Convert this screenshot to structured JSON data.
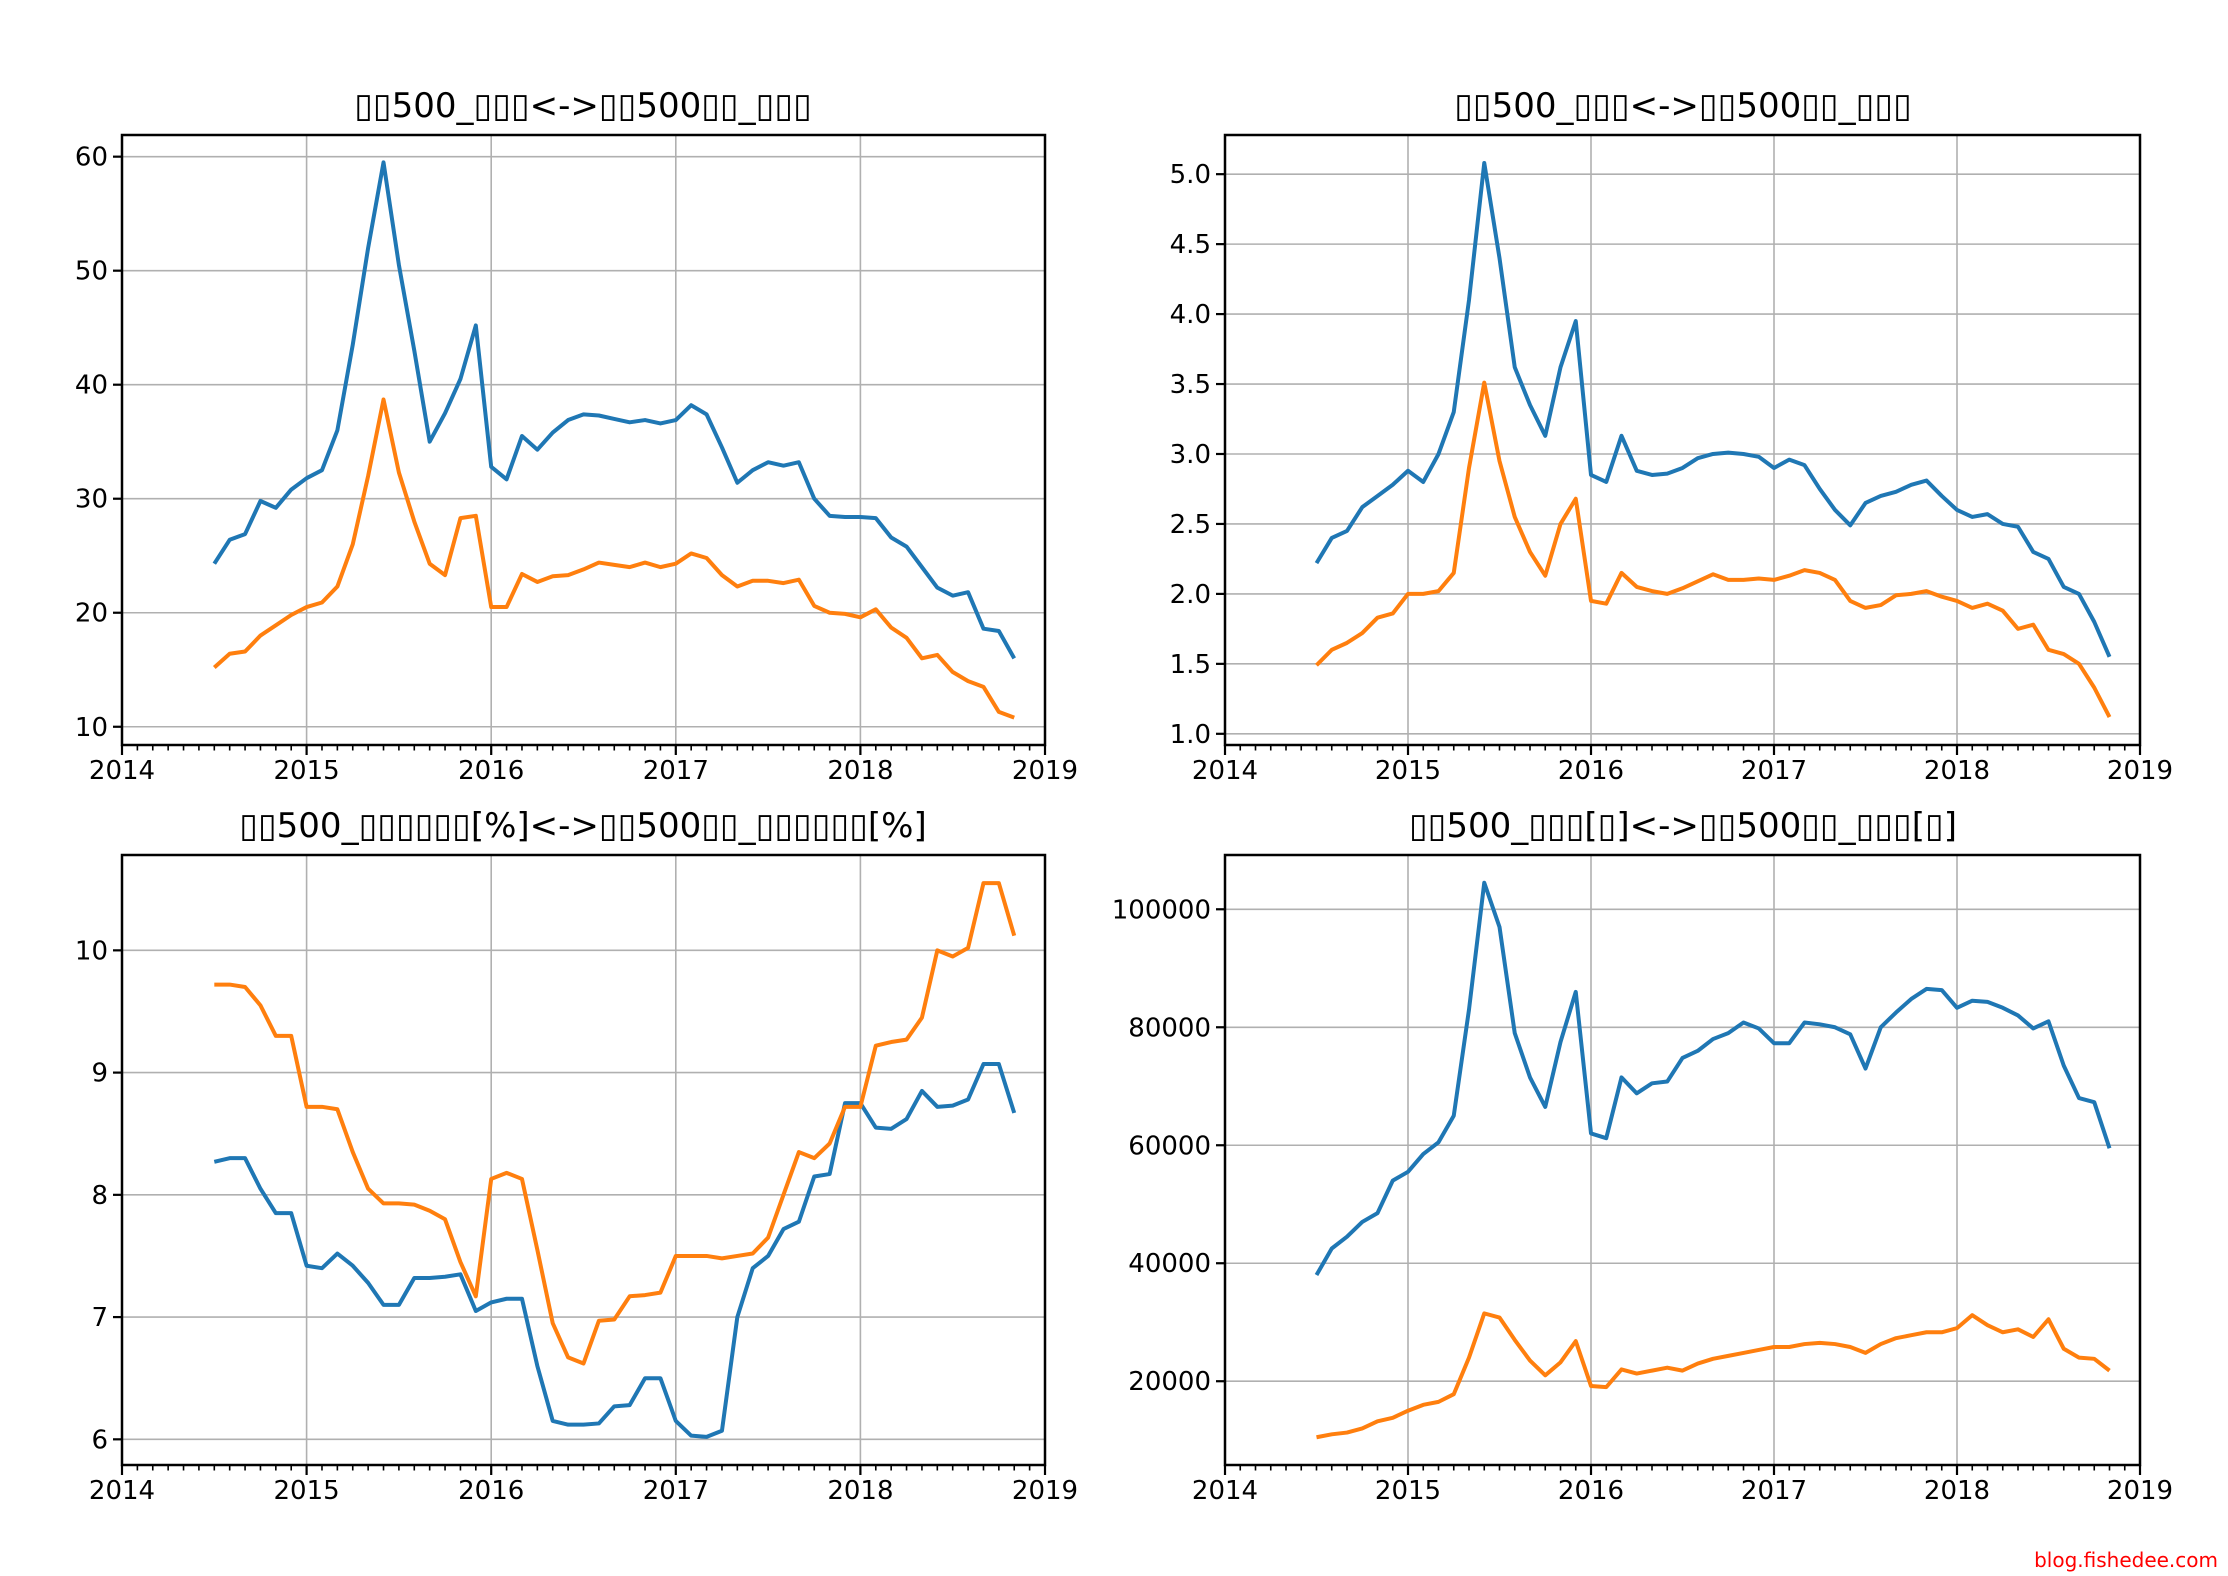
{
  "figure": {
    "background": "#ffffff"
  },
  "palette": {
    "blue": "#1f77b4",
    "orange": "#ff7f0e",
    "grid": "#b0b0b0",
    "spine": "#000000",
    "tick_label": "#000000"
  },
  "watermark": {
    "text": "blog.fishedee.com",
    "color": "#ff0000"
  },
  "months": [
    "2014-07",
    "2014-08",
    "2014-09",
    "2014-10",
    "2014-11",
    "2014-12",
    "2015-01",
    "2015-02",
    "2015-03",
    "2015-04",
    "2015-05",
    "2015-06",
    "2015-07",
    "2015-08",
    "2015-09",
    "2015-10",
    "2015-11",
    "2015-12",
    "2016-01",
    "2016-02",
    "2016-03",
    "2016-04",
    "2016-05",
    "2016-06",
    "2016-07",
    "2016-08",
    "2016-09",
    "2016-10",
    "2016-11",
    "2016-12",
    "2017-01",
    "2017-02",
    "2017-03",
    "2017-04",
    "2017-05",
    "2017-06",
    "2017-07",
    "2017-08",
    "2017-09",
    "2017-10",
    "2017-11",
    "2017-12",
    "2018-01",
    "2018-02",
    "2018-03",
    "2018-04",
    "2018-05",
    "2018-06",
    "2018-07",
    "2018-08",
    "2018-09",
    "2018-10",
    "2018-11"
  ],
  "xlim": [
    2014,
    2019
  ],
  "xtick_labels": [
    "2014",
    "2015",
    "2016",
    "2017",
    "2018",
    "2019"
  ],
  "chart_data": [
    {
      "type": "line",
      "position": "top-left",
      "title": "▯▯500_▯▯▯<->▯▯500▯▯_▯▯▯",
      "grid": true,
      "legend": "none",
      "ylim": [
        8.4,
        61.9
      ],
      "yticks": [
        "10",
        "20",
        "30",
        "40",
        "50",
        "60"
      ],
      "series": [
        {
          "name": "series-blue",
          "color": "blue",
          "values": [
            24.3,
            26.4,
            26.9,
            29.8,
            29.2,
            30.8,
            31.8,
            32.5,
            36.0,
            43.5,
            52.0,
            59.5,
            50.5,
            43.0,
            35.0,
            37.5,
            40.5,
            45.2,
            32.8,
            31.7,
            35.5,
            34.3,
            35.8,
            36.9,
            37.4,
            37.3,
            37.0,
            36.7,
            36.9,
            36.6,
            36.9,
            38.2,
            37.4,
            34.5,
            31.4,
            32.5,
            33.2,
            32.9,
            33.2,
            30.0,
            28.5,
            28.4,
            28.4,
            28.3,
            26.6,
            25.8,
            24.0,
            22.2,
            21.5,
            21.8,
            18.6,
            18.4,
            16.0
          ]
        },
        {
          "name": "series-orange",
          "color": "orange",
          "values": [
            15.2,
            16.4,
            16.6,
            18.0,
            18.9,
            19.8,
            20.5,
            20.9,
            22.3,
            26.0,
            32.0,
            38.7,
            32.3,
            28.0,
            24.3,
            23.3,
            28.3,
            28.5,
            20.5,
            20.5,
            23.4,
            22.7,
            23.2,
            23.3,
            23.8,
            24.4,
            24.2,
            24.0,
            24.4,
            24.0,
            24.3,
            25.2,
            24.8,
            23.3,
            22.3,
            22.8,
            22.8,
            22.6,
            22.9,
            20.6,
            20.0,
            19.9,
            19.6,
            20.3,
            18.7,
            17.8,
            16.0,
            16.3,
            14.8,
            14.0,
            13.5,
            11.3,
            10.8
          ]
        }
      ]
    },
    {
      "type": "line",
      "position": "top-right",
      "title": "▯▯500_▯▯▯<->▯▯500▯▯_▯▯▯",
      "grid": true,
      "legend": "none",
      "ylim": [
        0.92,
        5.28
      ],
      "yticks": [
        "1.0",
        "1.5",
        "2.0",
        "2.5",
        "3.0",
        "3.5",
        "4.0",
        "4.5",
        "5.0"
      ],
      "series": [
        {
          "name": "series-blue",
          "color": "blue",
          "values": [
            2.22,
            2.4,
            2.45,
            2.62,
            2.7,
            2.78,
            2.88,
            2.8,
            3.0,
            3.3,
            4.1,
            5.08,
            4.4,
            3.62,
            3.35,
            3.13,
            3.62,
            3.95,
            2.85,
            2.8,
            3.13,
            2.88,
            2.85,
            2.86,
            2.9,
            2.97,
            3.0,
            3.01,
            3.0,
            2.98,
            2.9,
            2.96,
            2.92,
            2.75,
            2.6,
            2.49,
            2.65,
            2.7,
            2.73,
            2.78,
            2.81,
            2.7,
            2.6,
            2.55,
            2.57,
            2.5,
            2.48,
            2.3,
            2.25,
            2.05,
            2.0,
            1.8,
            1.55
          ]
        },
        {
          "name": "series-orange",
          "color": "orange",
          "values": [
            1.49,
            1.6,
            1.65,
            1.72,
            1.83,
            1.86,
            2.0,
            2.0,
            2.02,
            2.15,
            2.9,
            3.51,
            2.95,
            2.55,
            2.3,
            2.13,
            2.5,
            2.68,
            1.95,
            1.93,
            2.15,
            2.05,
            2.02,
            2.0,
            2.04,
            2.09,
            2.14,
            2.1,
            2.1,
            2.11,
            2.1,
            2.13,
            2.17,
            2.15,
            2.1,
            1.95,
            1.9,
            1.92,
            1.99,
            2.0,
            2.02,
            1.98,
            1.95,
            1.9,
            1.93,
            1.88,
            1.75,
            1.78,
            1.6,
            1.57,
            1.5,
            1.33,
            1.12
          ]
        }
      ]
    },
    {
      "type": "line",
      "position": "bottom-left",
      "title": "▯▯500_▯▯▯▯▯▯[%]<->▯▯500▯▯_▯▯▯▯▯▯[%]",
      "grid": true,
      "legend": "none",
      "ylim": [
        5.79,
        10.78
      ],
      "yticks": [
        "6",
        "7",
        "8",
        "9",
        "10"
      ],
      "series": [
        {
          "name": "series-blue",
          "color": "blue",
          "values": [
            8.27,
            8.3,
            8.3,
            8.05,
            7.85,
            7.85,
            7.42,
            7.4,
            7.52,
            7.42,
            7.28,
            7.1,
            7.1,
            7.32,
            7.32,
            7.33,
            7.35,
            7.05,
            7.12,
            7.15,
            7.15,
            6.6,
            6.15,
            6.12,
            6.12,
            6.13,
            6.27,
            6.28,
            6.5,
            6.5,
            6.15,
            6.03,
            6.02,
            6.07,
            7.0,
            7.4,
            7.5,
            7.72,
            7.78,
            8.15,
            8.17,
            8.75,
            8.75,
            8.55,
            8.54,
            8.62,
            8.85,
            8.72,
            8.73,
            8.78,
            9.07,
            9.07,
            8.67
          ]
        },
        {
          "name": "series-orange",
          "color": "orange",
          "values": [
            9.72,
            9.72,
            9.7,
            9.55,
            9.3,
            9.3,
            8.72,
            8.72,
            8.7,
            8.35,
            8.05,
            7.93,
            7.93,
            7.92,
            7.87,
            7.8,
            7.45,
            7.17,
            8.13,
            8.18,
            8.13,
            7.55,
            6.95,
            6.67,
            6.62,
            6.97,
            6.98,
            7.17,
            7.18,
            7.2,
            7.5,
            7.5,
            7.5,
            7.48,
            7.5,
            7.52,
            7.65,
            8.0,
            8.35,
            8.3,
            8.42,
            8.72,
            8.72,
            9.22,
            9.25,
            9.27,
            9.45,
            10.0,
            9.95,
            10.02,
            10.55,
            10.55,
            10.12
          ]
        }
      ]
    },
    {
      "type": "line",
      "position": "bottom-right",
      "title": "▯▯500_▯▯▯[▯]<->▯▯500▯▯_▯▯▯[▯]",
      "grid": true,
      "legend": "none",
      "ylim": [
        5800,
        109200
      ],
      "yticks": [
        "20000",
        "40000",
        "60000",
        "80000",
        "100000"
      ],
      "series": [
        {
          "name": "series-blue",
          "color": "blue",
          "values": [
            38000,
            42500,
            44500,
            47000,
            48500,
            54000,
            55500,
            58500,
            60500,
            65000,
            83000,
            104500,
            97000,
            79000,
            71500,
            66500,
            77500,
            86000,
            62000,
            61200,
            71500,
            68800,
            70500,
            70800,
            74800,
            76000,
            78000,
            79000,
            80800,
            79800,
            77300,
            77300,
            80800,
            80500,
            80000,
            78800,
            73000,
            80000,
            82500,
            84800,
            86500,
            86300,
            83300,
            84500,
            84300,
            83300,
            82000,
            79800,
            81000,
            73500,
            68000,
            67300,
            59500
          ]
        },
        {
          "name": "series-orange",
          "color": "orange",
          "values": [
            10500,
            11000,
            11300,
            12000,
            13200,
            13800,
            15000,
            16000,
            16500,
            17800,
            24000,
            31500,
            30800,
            27000,
            23500,
            21000,
            23200,
            26800,
            19200,
            19000,
            22000,
            21300,
            21800,
            22300,
            21800,
            23000,
            23800,
            24300,
            24800,
            25300,
            25800,
            25800,
            26300,
            26500,
            26300,
            25800,
            24800,
            26300,
            27300,
            27800,
            28300,
            28300,
            29000,
            31200,
            29500,
            28300,
            28800,
            27500,
            30500,
            25500,
            24000,
            23800,
            21800
          ]
        }
      ]
    }
  ]
}
